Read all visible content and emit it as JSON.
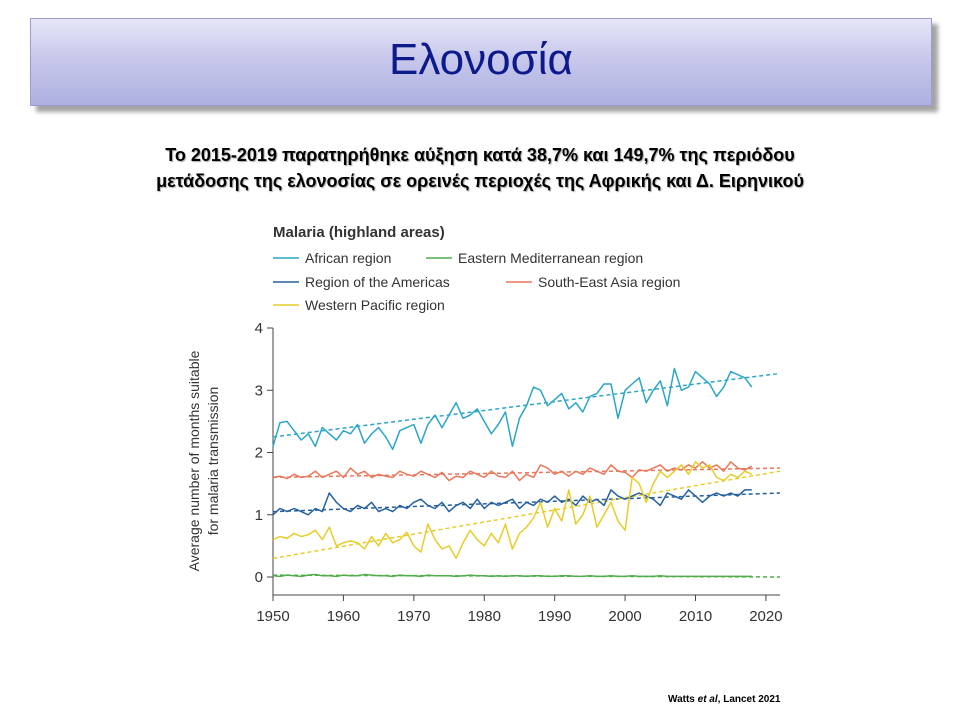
{
  "slide": {
    "title": "Ελονοσία",
    "subtitle_line1": "Το 2015-2019 παρατηρήθηκε αύξηση κατά 38,7% και 149,7% της περιόδου",
    "subtitle_line2": "μετάδοσης της ελονοσίας σε ορεινές περιοχές της Αφρικής και Δ. Ειρηνικού",
    "citation_author": "Watts",
    "citation_etal": "et al",
    "citation_rest": ", Lancet 2021"
  },
  "chart_data": {
    "type": "line",
    "title": "Malaria (highland areas)",
    "xlabel": "",
    "ylabel": "Average number of months suitable for malaria transmission",
    "ylabel_line1": "Average number of months suitable",
    "ylabel_line2": "for malaria transmission",
    "xlim": [
      1950,
      2022
    ],
    "ylim": [
      0,
      4
    ],
    "x_ticks": [
      1950,
      1960,
      1970,
      1980,
      1990,
      2000,
      2010,
      2020
    ],
    "y_ticks": [
      0,
      1,
      2,
      3,
      4
    ],
    "grid": false,
    "legend_position": "top-left",
    "x_start": 1950,
    "x_end": 2018,
    "series": [
      {
        "name": "African region",
        "color": "#2ba6c6",
        "trend": [
          2.25,
          3.27
        ],
        "values": [
          2.1,
          2.48,
          2.5,
          2.35,
          2.2,
          2.3,
          2.1,
          2.4,
          2.3,
          2.2,
          2.35,
          2.3,
          2.45,
          2.15,
          2.3,
          2.4,
          2.25,
          2.05,
          2.35,
          2.4,
          2.45,
          2.15,
          2.45,
          2.6,
          2.4,
          2.6,
          2.8,
          2.55,
          2.6,
          2.7,
          2.5,
          2.3,
          2.45,
          2.65,
          2.1,
          2.55,
          2.75,
          3.05,
          3.0,
          2.75,
          2.85,
          2.95,
          2.7,
          2.8,
          2.65,
          2.9,
          2.95,
          3.1,
          3.1,
          2.55,
          3.0,
          3.1,
          3.2,
          2.8,
          3.0,
          3.15,
          2.75,
          3.35,
          3.0,
          3.05,
          3.3,
          3.2,
          3.1,
          2.9,
          3.05,
          3.3,
          3.25,
          3.2,
          3.05
        ]
      },
      {
        "name": "Eastern Mediterranean region",
        "color": "#4fae4a",
        "trend": [
          0.03,
          0.0
        ],
        "values": [
          0.02,
          0.01,
          0.03,
          0.02,
          0.01,
          0.03,
          0.04,
          0.02,
          0.02,
          0.01,
          0.03,
          0.02,
          0.02,
          0.04,
          0.03,
          0.02,
          0.02,
          0.01,
          0.03,
          0.02,
          0.02,
          0.01,
          0.03,
          0.02,
          0.02,
          0.02,
          0.01,
          0.02,
          0.03,
          0.02,
          0.02,
          0.01,
          0.02,
          0.01,
          0.02,
          0.02,
          0.01,
          0.02,
          0.02,
          0.01,
          0.01,
          0.02,
          0.02,
          0.01,
          0.01,
          0.02,
          0.01,
          0.01,
          0.02,
          0.01,
          0.01,
          0.02,
          0.01,
          0.01,
          0.01,
          0.02,
          0.01,
          0.01,
          0.01,
          0.01,
          0.01,
          0.01,
          0.01,
          0.01,
          0.01,
          0.01,
          0.01,
          0.01,
          0.01
        ]
      },
      {
        "name": "Region of the Americas",
        "color": "#25609e",
        "trend": [
          1.05,
          1.35
        ],
        "values": [
          1.0,
          1.1,
          1.05,
          1.1,
          1.05,
          1.0,
          1.1,
          1.05,
          1.35,
          1.2,
          1.1,
          1.05,
          1.15,
          1.1,
          1.2,
          1.05,
          1.1,
          1.05,
          1.15,
          1.1,
          1.2,
          1.25,
          1.15,
          1.1,
          1.2,
          1.05,
          1.15,
          1.2,
          1.1,
          1.25,
          1.1,
          1.2,
          1.15,
          1.2,
          1.25,
          1.1,
          1.2,
          1.15,
          1.25,
          1.2,
          1.3,
          1.2,
          1.25,
          1.15,
          1.3,
          1.2,
          1.25,
          1.15,
          1.4,
          1.3,
          1.25,
          1.3,
          1.35,
          1.3,
          1.25,
          1.15,
          1.35,
          1.3,
          1.25,
          1.4,
          1.3,
          1.2,
          1.3,
          1.35,
          1.3,
          1.35,
          1.3,
          1.4,
          1.4
        ]
      },
      {
        "name": "South-East Asia region",
        "color": "#e9775a",
        "trend": [
          1.6,
          1.75
        ],
        "values": [
          1.6,
          1.62,
          1.58,
          1.65,
          1.6,
          1.62,
          1.7,
          1.6,
          1.65,
          1.7,
          1.6,
          1.75,
          1.65,
          1.7,
          1.6,
          1.65,
          1.62,
          1.6,
          1.7,
          1.65,
          1.62,
          1.7,
          1.65,
          1.6,
          1.68,
          1.55,
          1.62,
          1.6,
          1.7,
          1.65,
          1.6,
          1.7,
          1.62,
          1.6,
          1.7,
          1.55,
          1.65,
          1.6,
          1.8,
          1.75,
          1.65,
          1.7,
          1.62,
          1.7,
          1.65,
          1.75,
          1.7,
          1.65,
          1.8,
          1.7,
          1.68,
          1.6,
          1.72,
          1.7,
          1.75,
          1.8,
          1.7,
          1.75,
          1.72,
          1.8,
          1.75,
          1.85,
          1.75,
          1.8,
          1.7,
          1.85,
          1.75,
          1.72,
          1.78
        ]
      },
      {
        "name": "Western Pacific region",
        "color": "#e6cd2a",
        "trend": [
          0.3,
          1.7
        ],
        "values": [
          0.6,
          0.65,
          0.62,
          0.7,
          0.65,
          0.68,
          0.75,
          0.6,
          0.8,
          0.5,
          0.55,
          0.58,
          0.55,
          0.45,
          0.65,
          0.5,
          0.7,
          0.55,
          0.6,
          0.72,
          0.5,
          0.4,
          0.85,
          0.6,
          0.45,
          0.5,
          0.3,
          0.55,
          0.75,
          0.6,
          0.5,
          0.7,
          0.55,
          0.85,
          0.45,
          0.7,
          0.8,
          0.95,
          1.2,
          0.8,
          1.1,
          0.9,
          1.4,
          0.85,
          1.0,
          1.3,
          0.8,
          1.0,
          1.2,
          0.9,
          0.75,
          1.6,
          1.5,
          1.2,
          1.5,
          1.7,
          1.6,
          1.7,
          1.8,
          1.65,
          1.85,
          1.75,
          1.8,
          1.6,
          1.55,
          1.65,
          1.6,
          1.7,
          1.65
        ]
      }
    ]
  }
}
